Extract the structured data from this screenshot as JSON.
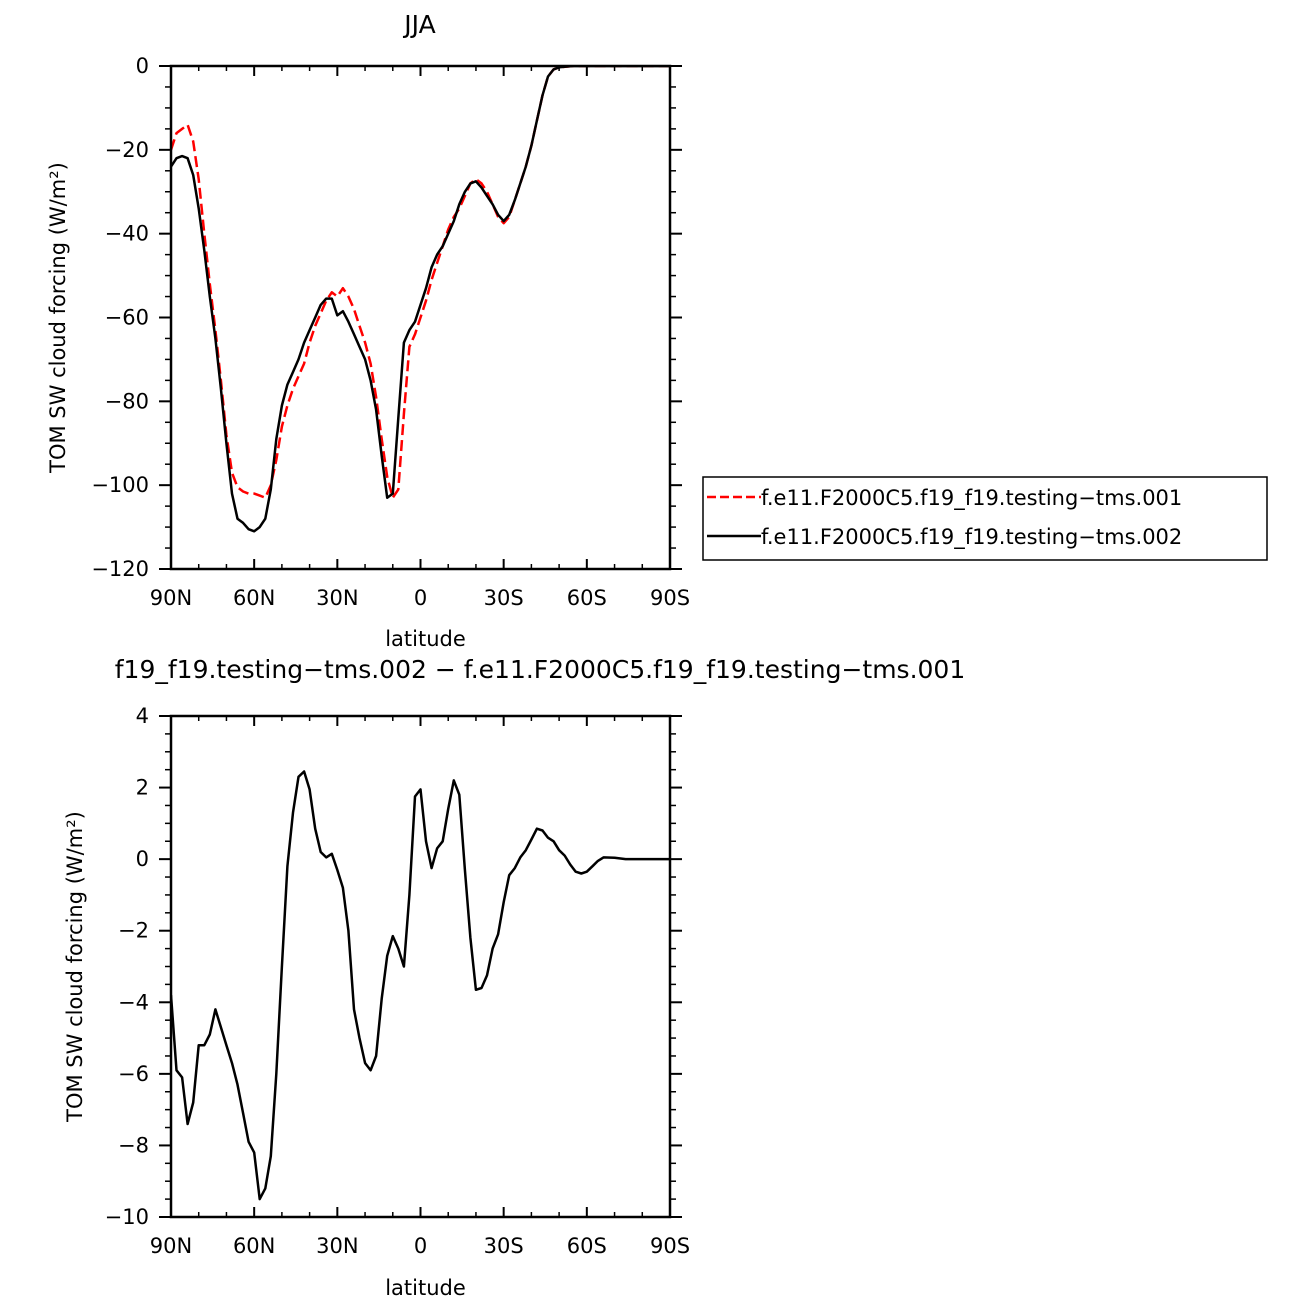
{
  "chart_data": [
    {
      "type": "line",
      "title": "JJA",
      "xlabel": "latitude",
      "ylabel": "TOM SW cloud forcing (W/m²)",
      "xlim": [
        90,
        -90
      ],
      "ylim": [
        -120,
        0
      ],
      "x_ticks": [
        {
          "value": 90,
          "label": "90N"
        },
        {
          "value": 60,
          "label": "60N"
        },
        {
          "value": 30,
          "label": "30N"
        },
        {
          "value": 0,
          "label": "0"
        },
        {
          "value": -30,
          "label": "30S"
        },
        {
          "value": -60,
          "label": "60S"
        },
        {
          "value": -90,
          "label": "90S"
        }
      ],
      "y_ticks": [
        0,
        -20,
        -40,
        -60,
        -80,
        -100,
        -120
      ],
      "legend_position": "right",
      "series": [
        {
          "name": "f.e11.F2000C5.f19_f19.testing−tms.001",
          "color": "#ff0000",
          "dash": "dashed",
          "points": [
            [
              90,
              -20
            ],
            [
              88,
              -16
            ],
            [
              86,
              -15
            ],
            [
              84,
              -14
            ],
            [
              82,
              -18
            ],
            [
              80,
              -27
            ],
            [
              78,
              -40
            ],
            [
              76,
              -52
            ],
            [
              74,
              -63
            ],
            [
              72,
              -75
            ],
            [
              70,
              -88
            ],
            [
              68,
              -97
            ],
            [
              66,
              -100.5
            ],
            [
              64,
              -101.5
            ],
            [
              62,
              -102
            ],
            [
              60,
              -102
            ],
            [
              58,
              -102.5
            ],
            [
              56,
              -103
            ],
            [
              54,
              -100
            ],
            [
              52,
              -94
            ],
            [
              50,
              -86
            ],
            [
              48,
              -81
            ],
            [
              46,
              -77
            ],
            [
              44,
              -74
            ],
            [
              42,
              -71
            ],
            [
              40,
              -66
            ],
            [
              38,
              -62
            ],
            [
              36,
              -59
            ],
            [
              34,
              -56
            ],
            [
              32,
              -54
            ],
            [
              30,
              -55
            ],
            [
              28,
              -53
            ],
            [
              26,
              -55
            ],
            [
              24,
              -58
            ],
            [
              22,
              -62
            ],
            [
              20,
              -66
            ],
            [
              18,
              -71
            ],
            [
              16,
              -79
            ],
            [
              14,
              -89
            ],
            [
              12,
              -98
            ],
            [
              10,
              -103
            ],
            [
              8,
              -101
            ],
            [
              6,
              -83
            ],
            [
              4,
              -67
            ],
            [
              2,
              -64
            ],
            [
              0,
              -60
            ],
            [
              -2,
              -56
            ],
            [
              -4,
              -51
            ],
            [
              -6,
              -47
            ],
            [
              -8,
              -43
            ],
            [
              -10,
              -39
            ],
            [
              -12,
              -36
            ],
            [
              -14,
              -34
            ],
            [
              -16,
              -31
            ],
            [
              -18,
              -28
            ],
            [
              -20,
              -27
            ],
            [
              -22,
              -28
            ],
            [
              -24,
              -30
            ],
            [
              -26,
              -33
            ],
            [
              -28,
              -36
            ],
            [
              -30,
              -37.5
            ],
            [
              -32,
              -36
            ],
            [
              -34,
              -32
            ],
            [
              -36,
              -28
            ],
            [
              -38,
              -24
            ],
            [
              -40,
              -19
            ],
            [
              -42,
              -13
            ],
            [
              -44,
              -7
            ],
            [
              -46,
              -2.5
            ],
            [
              -48,
              -0.8
            ],
            [
              -50,
              -0.3
            ],
            [
              -55,
              0
            ],
            [
              -60,
              0
            ],
            [
              -70,
              0
            ],
            [
              -80,
              0
            ],
            [
              -90,
              0
            ]
          ]
        },
        {
          "name": "f.e11.F2000C5.f19_f19.testing−tms.002",
          "color": "#000000",
          "dash": "solid",
          "points": [
            [
              90,
              -24
            ],
            [
              88,
              -22
            ],
            [
              86,
              -21.5
            ],
            [
              84,
              -22
            ],
            [
              82,
              -26
            ],
            [
              80,
              -34
            ],
            [
              78,
              -44
            ],
            [
              76,
              -55
            ],
            [
              74,
              -65
            ],
            [
              72,
              -77
            ],
            [
              70,
              -90
            ],
            [
              68,
              -102
            ],
            [
              66,
              -108
            ],
            [
              64,
              -109
            ],
            [
              62,
              -110.5
            ],
            [
              60,
              -111
            ],
            [
              58,
              -110
            ],
            [
              56,
              -108
            ],
            [
              54,
              -101
            ],
            [
              52,
              -89
            ],
            [
              50,
              -81
            ],
            [
              48,
              -76
            ],
            [
              46,
              -73
            ],
            [
              44,
              -70
            ],
            [
              42,
              -66
            ],
            [
              40,
              -63
            ],
            [
              38,
              -60
            ],
            [
              36,
              -57
            ],
            [
              34,
              -55.5
            ],
            [
              32,
              -55.5
            ],
            [
              30,
              -59.5
            ],
            [
              28,
              -58.5
            ],
            [
              26,
              -61
            ],
            [
              24,
              -64
            ],
            [
              22,
              -67
            ],
            [
              20,
              -70
            ],
            [
              18,
              -75
            ],
            [
              16,
              -82
            ],
            [
              14,
              -93
            ],
            [
              12,
              -103
            ],
            [
              10,
              -102
            ],
            [
              8,
              -84
            ],
            [
              6,
              -66
            ],
            [
              4,
              -63
            ],
            [
              2,
              -61
            ],
            [
              0,
              -57
            ],
            [
              -2,
              -53
            ],
            [
              -4,
              -48
            ],
            [
              -6,
              -45
            ],
            [
              -8,
              -43
            ],
            [
              -10,
              -40
            ],
            [
              -12,
              -37
            ],
            [
              -14,
              -33
            ],
            [
              -16,
              -30
            ],
            [
              -18,
              -28
            ],
            [
              -20,
              -27.5
            ],
            [
              -22,
              -29
            ],
            [
              -24,
              -31
            ],
            [
              -26,
              -33
            ],
            [
              -28,
              -35.5
            ],
            [
              -30,
              -37
            ],
            [
              -32,
              -35.5
            ],
            [
              -34,
              -32
            ],
            [
              -36,
              -28
            ],
            [
              -38,
              -24
            ],
            [
              -40,
              -19
            ],
            [
              -42,
              -13
            ],
            [
              -44,
              -7
            ],
            [
              -46,
              -2.5
            ],
            [
              -48,
              -0.8
            ],
            [
              -50,
              -0.3
            ],
            [
              -55,
              0
            ],
            [
              -60,
              0
            ],
            [
              -70,
              0
            ],
            [
              -80,
              0
            ],
            [
              -90,
              0
            ]
          ]
        }
      ]
    },
    {
      "type": "line",
      "title": "f19_f19.testing−tms.002 − f.e11.F2000C5.f19_f19.testing−tms.001",
      "xlabel": "latitude",
      "ylabel": "TOM SW cloud forcing (W/m²)",
      "xlim": [
        90,
        -90
      ],
      "ylim": [
        -10,
        4
      ],
      "x_ticks": [
        {
          "value": 90,
          "label": "90N"
        },
        {
          "value": 60,
          "label": "60N"
        },
        {
          "value": 30,
          "label": "30N"
        },
        {
          "value": 0,
          "label": "0"
        },
        {
          "value": -30,
          "label": "30S"
        },
        {
          "value": -60,
          "label": "60S"
        },
        {
          "value": -90,
          "label": "90S"
        }
      ],
      "y_ticks": [
        4,
        2,
        0,
        -2,
        -4,
        -6,
        -8,
        -10
      ],
      "series": [
        {
          "color": "#000000",
          "dash": "solid",
          "points": [
            [
              90,
              -3.8
            ],
            [
              88,
              -5.9
            ],
            [
              86,
              -6.1
            ],
            [
              84,
              -7.4
            ],
            [
              82,
              -6.8
            ],
            [
              80,
              -5.2
            ],
            [
              78,
              -5.2
            ],
            [
              76,
              -4.9
            ],
            [
              74,
              -4.2
            ],
            [
              72,
              -4.7
            ],
            [
              70,
              -5.2
            ],
            [
              68,
              -5.7
            ],
            [
              66,
              -6.3
            ],
            [
              64,
              -7.1
            ],
            [
              62,
              -7.9
            ],
            [
              60,
              -8.2
            ],
            [
              58,
              -9.5
            ],
            [
              56,
              -9.2
            ],
            [
              54,
              -8.3
            ],
            [
              52,
              -6.0
            ],
            [
              50,
              -3.0
            ],
            [
              48,
              -0.2
            ],
            [
              46,
              1.3
            ],
            [
              44,
              2.3
            ],
            [
              42,
              2.45
            ],
            [
              40,
              1.95
            ],
            [
              38,
              0.85
            ],
            [
              36,
              0.2
            ],
            [
              34,
              0.05
            ],
            [
              32,
              0.15
            ],
            [
              30,
              -0.3
            ],
            [
              28,
              -0.8
            ],
            [
              26,
              -2.0
            ],
            [
              24,
              -4.2
            ],
            [
              22,
              -5.0
            ],
            [
              20,
              -5.7
            ],
            [
              18,
              -5.9
            ],
            [
              16,
              -5.5
            ],
            [
              14,
              -3.9
            ],
            [
              12,
              -2.7
            ],
            [
              10,
              -2.15
            ],
            [
              8,
              -2.5
            ],
            [
              6,
              -3.0
            ],
            [
              4,
              -1.0
            ],
            [
              2,
              1.75
            ],
            [
              0,
              1.95
            ],
            [
              -2,
              0.5
            ],
            [
              -4,
              -0.25
            ],
            [
              -6,
              0.3
            ],
            [
              -8,
              0.5
            ],
            [
              -10,
              1.4
            ],
            [
              -12,
              2.2
            ],
            [
              -14,
              1.8
            ],
            [
              -16,
              -0.3
            ],
            [
              -18,
              -2.2
            ],
            [
              -20,
              -3.65
            ],
            [
              -22,
              -3.6
            ],
            [
              -24,
              -3.25
            ],
            [
              -26,
              -2.5
            ],
            [
              -28,
              -2.1
            ],
            [
              -30,
              -1.2
            ],
            [
              -32,
              -0.45
            ],
            [
              -34,
              -0.25
            ],
            [
              -36,
              0.05
            ],
            [
              -38,
              0.25
            ],
            [
              -40,
              0.55
            ],
            [
              -42,
              0.85
            ],
            [
              -44,
              0.8
            ],
            [
              -46,
              0.6
            ],
            [
              -48,
              0.5
            ],
            [
              -50,
              0.25
            ],
            [
              -52,
              0.1
            ],
            [
              -54,
              -0.15
            ],
            [
              -56,
              -0.35
            ],
            [
              -58,
              -0.4
            ],
            [
              -60,
              -0.35
            ],
            [
              -62,
              -0.2
            ],
            [
              -64,
              -0.05
            ],
            [
              -66,
              0.05
            ],
            [
              -70,
              0.04
            ],
            [
              -74,
              0.0
            ],
            [
              -80,
              0.0
            ],
            [
              -90,
              0.0
            ]
          ]
        }
      ]
    }
  ]
}
